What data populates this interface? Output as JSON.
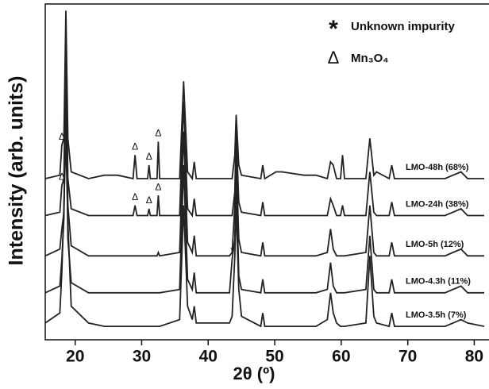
{
  "chart_data": {
    "type": "line",
    "xlabel": "2θ (º)",
    "ylabel": "Intensity (arb. units)",
    "xlim": [
      15.5,
      81.5
    ],
    "ylim": [
      0,
      100
    ],
    "xticks": [
      20,
      30,
      40,
      50,
      60,
      70,
      80
    ],
    "legend": [
      {
        "symbol": "*",
        "label": "Unknown impurity"
      },
      {
        "symbol": "Δ",
        "label": "Mn₃O₄"
      }
    ],
    "x": [
      15.5,
      17.7,
      18.0,
      18.3,
      18.6,
      18.9,
      19.4,
      22,
      24.4,
      26.4,
      28.7,
      29.0,
      29.3,
      30.9,
      31.1,
      31.3,
      32.3,
      32.5,
      32.7,
      35.7,
      36.3,
      36.9,
      37.6,
      37.9,
      38.2,
      43.2,
      43.6,
      44.0,
      44.2,
      44.6,
      45.0,
      47.9,
      48.2,
      48.5,
      50.2,
      51.1,
      54.4,
      56.2,
      57.9,
      58.4,
      58.8,
      59.3,
      59.9,
      60.2,
      60.5,
      63.7,
      64.3,
      64.9,
      65.3,
      67.2,
      67.6,
      68.0,
      75.6,
      76.8,
      78.0,
      79.0,
      81.5
    ],
    "series": [
      {
        "name": "LMO-48h (68%)",
        "color": "#222222",
        "values": [
          48,
          49,
          58,
          60,
          98,
          60,
          50,
          48,
          49,
          49,
          48,
          55,
          48,
          48,
          52,
          48,
          48,
          59,
          48,
          48,
          77,
          50,
          48,
          53,
          48,
          48,
          48,
          55,
          67,
          52,
          49,
          48,
          52,
          48,
          50,
          50,
          49,
          49,
          48,
          53,
          52,
          48,
          48,
          55,
          48,
          48,
          60,
          49,
          50,
          48,
          52,
          48,
          48,
          49,
          50,
          48,
          48
        ],
        "markers": [
          {
            "text": "Δ",
            "x": 18.0
          },
          {
            "text": "Δ",
            "x": 29.0
          },
          {
            "text": "Δ",
            "x": 31.1
          },
          {
            "text": "Δ",
            "x": 32.5
          }
        ]
      },
      {
        "name": "LMO-24h (38%)",
        "color": "#222222",
        "values": [
          37,
          38,
          46,
          48,
          93,
          48,
          39,
          37,
          37,
          37,
          37,
          40,
          37,
          37,
          39,
          37,
          37,
          43,
          37,
          37,
          71,
          39,
          37,
          42,
          37,
          37,
          37,
          44,
          62,
          41,
          38,
          37,
          41,
          37,
          37,
          37,
          37,
          37,
          37,
          42,
          40,
          37,
          37,
          40,
          37,
          37,
          50,
          38,
          37,
          37,
          41,
          37,
          37,
          38,
          39,
          37,
          37
        ],
        "markers": [
          {
            "text": "Δ",
            "x": 18.0
          },
          {
            "text": "Δ",
            "x": 29.0
          },
          {
            "text": "Δ",
            "x": 31.1
          },
          {
            "text": "Δ",
            "x": 32.5
          }
        ]
      },
      {
        "name": "LMO-5h (12%)",
        "color": "#222222",
        "values": [
          25,
          27,
          33,
          38,
          85,
          40,
          28,
          25,
          25,
          25,
          25,
          25,
          25,
          25,
          25,
          25,
          25,
          26,
          25,
          26,
          62,
          29,
          26,
          31,
          25,
          25,
          26,
          40,
          55,
          30,
          26,
          25,
          29,
          25,
          25,
          25,
          25,
          25,
          26,
          33,
          27,
          25,
          25,
          25,
          25,
          26,
          40,
          26,
          25,
          25,
          29,
          25,
          25,
          26,
          27,
          25,
          25
        ]
      },
      {
        "name": "LMO-4.3h (11%)",
        "color": "#222222",
        "values": [
          14,
          16,
          24,
          36,
          75,
          30,
          17,
          14,
          14,
          14,
          14,
          14,
          14,
          14,
          14,
          14,
          14,
          14,
          14,
          15,
          52,
          18,
          15,
          20,
          14,
          14,
          24,
          30,
          50,
          19,
          15,
          14,
          18,
          14,
          14,
          14,
          14,
          14,
          15,
          23,
          16,
          14,
          14,
          14,
          14,
          15,
          31,
          15,
          14,
          14,
          18,
          14,
          14,
          15,
          16,
          14,
          14
        ],
        "markers": [
          {
            "text": "*",
            "x": 43.6
          }
        ]
      },
      {
        "name": "LMO-3.5h (7%)",
        "color": "#222222",
        "values": [
          5,
          8,
          20,
          40,
          60,
          35,
          10,
          5,
          4,
          4,
          4,
          4,
          4,
          4,
          4,
          4,
          4,
          4,
          4,
          6,
          40,
          10,
          6,
          10,
          5,
          5,
          7,
          25,
          40,
          15,
          7,
          4,
          8,
          4,
          4,
          4,
          4,
          4,
          6,
          14,
          8,
          5,
          4,
          4,
          4,
          5,
          25,
          7,
          5,
          4,
          8,
          4,
          4,
          5,
          6,
          5,
          4
        ]
      }
    ]
  }
}
